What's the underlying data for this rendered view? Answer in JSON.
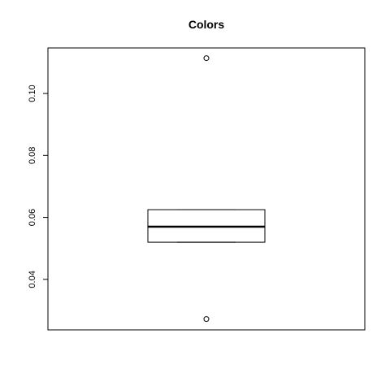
{
  "chart_data": {
    "type": "boxplot",
    "title": "Colors",
    "xlabel": "",
    "ylabel": "",
    "y_ticks": [
      0.04,
      0.06,
      0.08,
      0.1
    ],
    "y_tick_labels": [
      "0.04",
      "0.06",
      "0.08",
      "0.10"
    ],
    "ylim": [
      0.0237,
      0.1147
    ],
    "box": {
      "lower_whisker": 0.052,
      "q1": 0.052,
      "median": 0.057,
      "q3": 0.0625,
      "upper_whisker": 0.0625,
      "outliers": [
        0.0272,
        0.1114
      ]
    },
    "grid": false
  }
}
